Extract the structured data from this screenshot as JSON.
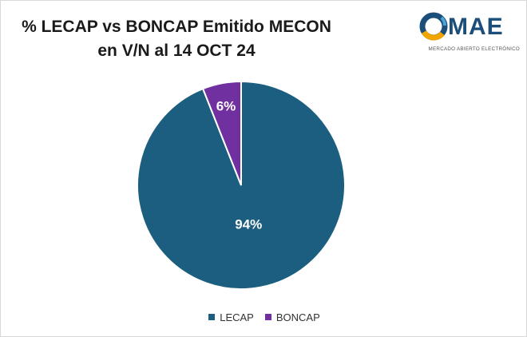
{
  "header": {
    "title_line1": "% LECAP vs BONCAP Emitido MECON",
    "title_line2": "en V/N al 14 OCT 24"
  },
  "logo": {
    "wordmark": "MAE",
    "subtitle": "MERCADO ABIERTO ELECTRÓNICO",
    "colors": {
      "ring_blue": "#1b4f7a",
      "ring_gold": "#f0a500",
      "ring_light": "#4da3d6"
    }
  },
  "chart_data": {
    "type": "pie",
    "title": "% LECAP vs BONCAP Emitido MECON en V/N al 14 OCT 24",
    "slices": [
      {
        "name": "LECAP",
        "value": 94,
        "label": "94%",
        "color": "#1b5e7f"
      },
      {
        "name": "BONCAP",
        "value": 6,
        "label": "6%",
        "color": "#7030a0"
      }
    ],
    "legend_position": "bottom"
  }
}
